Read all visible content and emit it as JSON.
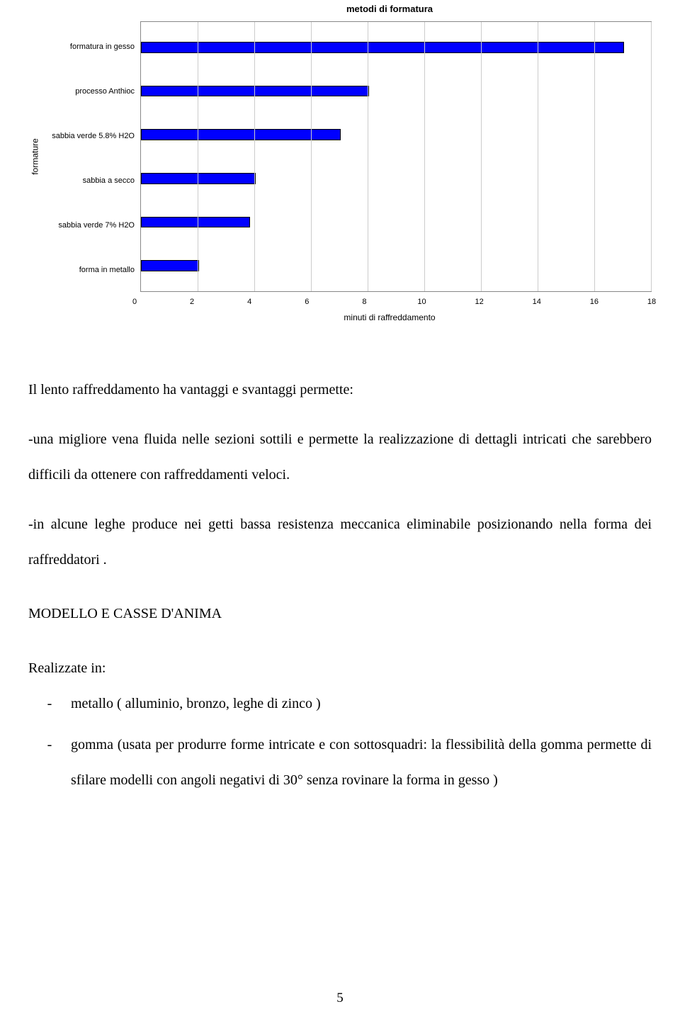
{
  "chart": {
    "title": "metodi di formatura",
    "y_axis_label": "formature",
    "x_axis_label": "minuti di raffreddamento",
    "xlim": [
      0,
      18
    ],
    "xtick_step": 2,
    "xticks": [
      "0",
      "2",
      "4",
      "6",
      "8",
      "10",
      "12",
      "14",
      "16",
      "18"
    ],
    "categories": [
      "formatura in gesso",
      "processo Anthioc",
      "sabbia verde 5.8% H2O",
      "sabbia a secco",
      "sabbia verde 7% H2O",
      "forma in metallo"
    ],
    "values": [
      17,
      8,
      7,
      4,
      3.8,
      2
    ],
    "bar_color": "#0000ff",
    "bar_border_color": "#000000",
    "grid_color": "#cccccc",
    "plot_border_color": "#888888",
    "background_color": "#ffffff",
    "label_font_family": "Arial",
    "label_fontsize": 11,
    "title_fontsize": 13
  },
  "text": {
    "para1": "Il lento raffreddamento ha vantaggi e svantaggi permette:",
    "para2": "-una migliore vena fluida nelle sezioni sottili e permette la realizzazione di dettagli intricati che sarebbero difficili da ottenere con raffreddamenti veloci.",
    "para3": "-in alcune leghe produce nei getti bassa resistenza meccanica eliminabile posizionando nella forma dei raffreddatori .",
    "heading": "MODELLO E CASSE D'ANIMA",
    "list_intro": "Realizzate in:",
    "list": [
      "metallo ( alluminio, bronzo, leghe di zinco )",
      "gomma (usata per produrre forme intricate e con sottosquadri: la flessibilità della gomma permette di sfilare modelli con  angoli negativi di 30° senza rovinare la forma in gesso )"
    ]
  },
  "page_number": "5"
}
